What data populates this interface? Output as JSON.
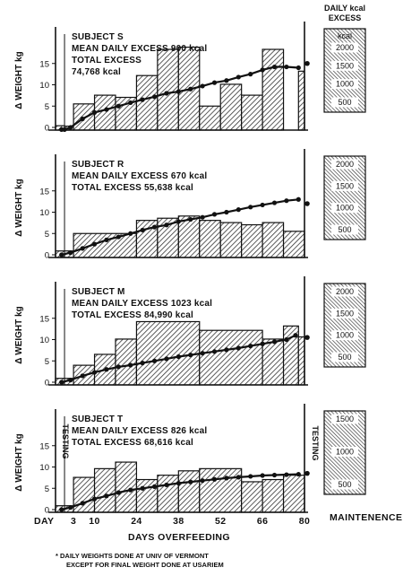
{
  "chart_data": [
    {
      "type": "bar",
      "title": "SUBJECT S",
      "subtitle_lines": [
        "MEAN DAILY EXCESS 900 kcal",
        "TOTAL EXCESS",
        "74,768 kcal"
      ],
      "ylabel": "Δ WEIGHT kg",
      "ylim": [
        -1,
        20
      ],
      "yticks": [
        0,
        5,
        10,
        15
      ],
      "intake_scale": {
        "title_lines": [
          "DAILY kcal",
          "EXCESS"
        ],
        "unit": "kcal",
        "ticks": [
          "2000",
          "1500",
          "1000",
          "500"
        ]
      },
      "excess_bars": [
        {
          "x0": -3,
          "x1": 0,
          "kcal": 100
        },
        {
          "x0": 0,
          "x1": 3,
          "kcal": 90
        },
        {
          "x0": 3,
          "x1": 10,
          "kcal": 600
        },
        {
          "x0": 10,
          "x1": 17,
          "kcal": 800
        },
        {
          "x0": 17,
          "x1": 24,
          "kcal": 750
        },
        {
          "x0": 24,
          "x1": 31,
          "kcal": 1250
        },
        {
          "x0": 31,
          "x1": 38,
          "kcal": 1850
        },
        {
          "x0": 38,
          "x1": 45,
          "kcal": 1900
        },
        {
          "x0": 45,
          "x1": 52,
          "kcal": 550
        },
        {
          "x0": 52,
          "x1": 59,
          "kcal": 1050
        },
        {
          "x0": 59,
          "x1": 66,
          "kcal": 800
        },
        {
          "x0": 66,
          "x1": 73,
          "kcal": 1850
        },
        {
          "x0": 78,
          "x1": 80,
          "kcal": 1350
        }
      ],
      "weight_change": {
        "x": [
          -1,
          0,
          2,
          6,
          10,
          14,
          18,
          22,
          26,
          30,
          34,
          38,
          42,
          46,
          50,
          54,
          58,
          62,
          66,
          70,
          74,
          78
        ],
        "y": [
          -0.5,
          -0.5,
          0,
          2,
          3.5,
          4.2,
          5,
          5.8,
          6.5,
          7.2,
          8,
          8.4,
          9,
          9.7,
          10.5,
          11,
          11.8,
          12.5,
          13.5,
          14.2,
          14.2,
          14
        ],
        "final_x": 80,
        "final_y": 15
      }
    },
    {
      "type": "bar",
      "title": "SUBJECT R",
      "subtitle_lines": [
        "MEAN DAILY EXCESS 670 kcal",
        "TOTAL EXCESS 55,638 kcal"
      ],
      "ylabel": "Δ WEIGHT kg",
      "ylim": [
        -1,
        20
      ],
      "yticks": [
        0,
        5,
        10,
        15
      ],
      "intake_scale": {
        "title_lines": [],
        "unit": "",
        "ticks": [
          "2000",
          "1500",
          "1000",
          "500"
        ]
      },
      "excess_bars": [
        {
          "x0": -3,
          "x1": 3,
          "kcal": 150
        },
        {
          "x0": 3,
          "x1": 24,
          "kcal": 550
        },
        {
          "x0": 24,
          "x1": 31,
          "kcal": 850
        },
        {
          "x0": 31,
          "x1": 38,
          "kcal": 900
        },
        {
          "x0": 38,
          "x1": 45,
          "kcal": 950
        },
        {
          "x0": 45,
          "x1": 52,
          "kcal": 850
        },
        {
          "x0": 52,
          "x1": 59,
          "kcal": 800
        },
        {
          "x0": 59,
          "x1": 66,
          "kcal": 750
        },
        {
          "x0": 66,
          "x1": 73,
          "kcal": 800
        },
        {
          "x0": 73,
          "x1": 80,
          "kcal": 600
        }
      ],
      "weight_change": {
        "x": [
          -1,
          2,
          6,
          10,
          14,
          18,
          22,
          26,
          30,
          34,
          38,
          42,
          46,
          50,
          54,
          58,
          62,
          66,
          70,
          74,
          78
        ],
        "y": [
          0,
          0.5,
          1.5,
          2.5,
          3.5,
          4.2,
          5,
          5.8,
          6.5,
          7,
          7.8,
          8.3,
          8.8,
          9.5,
          10,
          10.6,
          11.2,
          11.7,
          12.2,
          12.7,
          13
        ],
        "final_x": 80,
        "final_y": 12
      }
    },
    {
      "type": "bar",
      "title": "SUBJECT M",
      "subtitle_lines": [
        "MEAN DAILY EXCESS 1023 kcal",
        "TOTAL EXCESS 84,990 kcal"
      ],
      "ylabel": "Δ WEIGHT kg",
      "ylim": [
        -1,
        20
      ],
      "yticks": [
        0,
        5,
        10,
        15
      ],
      "intake_scale": {
        "title_lines": [],
        "unit": "",
        "ticks": [
          "2000",
          "1500",
          "1000",
          "500"
        ]
      },
      "excess_bars": [
        {
          "x0": -3,
          "x1": 3,
          "kcal": 150
        },
        {
          "x0": 3,
          "x1": 10,
          "kcal": 450
        },
        {
          "x0": 10,
          "x1": 17,
          "kcal": 700
        },
        {
          "x0": 17,
          "x1": 24,
          "kcal": 1050
        },
        {
          "x0": 24,
          "x1": 45,
          "kcal": 1450
        },
        {
          "x0": 45,
          "x1": 66,
          "kcal": 1250
        },
        {
          "x0": 66,
          "x1": 73,
          "kcal": 1050
        },
        {
          "x0": 73,
          "x1": 78,
          "kcal": 1350
        },
        {
          "x0": 78,
          "x1": 80,
          "kcal": 1100
        }
      ],
      "weight_change": {
        "x": [
          -1,
          2,
          6,
          10,
          14,
          18,
          22,
          26,
          30,
          34,
          38,
          42,
          46,
          50,
          54,
          58,
          62,
          66,
          70,
          74,
          77
        ],
        "y": [
          0,
          0.5,
          1.5,
          2.3,
          3,
          3.6,
          4,
          4.5,
          5,
          5.5,
          6,
          6.4,
          6.8,
          7.2,
          7.6,
          8,
          8.5,
          9,
          9.5,
          10,
          11
        ],
        "final_x": 80,
        "final_y": 10.5
      }
    },
    {
      "type": "bar",
      "title": "SUBJECT T",
      "subtitle_lines": [
        "MEAN DAILY EXCESS 826 kcal",
        "TOTAL EXCESS 68,616 kcal"
      ],
      "ylabel": "Δ WEIGHT kg",
      "ylim": [
        -1,
        20
      ],
      "yticks": [
        0,
        5,
        10,
        15
      ],
      "left_vertical_label": "TESTING",
      "right_vertical_label": "TESTING",
      "intake_scale": {
        "title_lines": [],
        "unit": "",
        "ticks": [
          "1500",
          "1000",
          "500"
        ]
      },
      "excess_bars": [
        {
          "x0": -3,
          "x1": 3,
          "kcal": 150
        },
        {
          "x0": 3,
          "x1": 10,
          "kcal": 800
        },
        {
          "x0": 10,
          "x1": 17,
          "kcal": 1000
        },
        {
          "x0": 17,
          "x1": 24,
          "kcal": 1150
        },
        {
          "x0": 24,
          "x1": 31,
          "kcal": 750
        },
        {
          "x0": 31,
          "x1": 38,
          "kcal": 850
        },
        {
          "x0": 38,
          "x1": 45,
          "kcal": 950
        },
        {
          "x0": 45,
          "x1": 59,
          "kcal": 1000
        },
        {
          "x0": 59,
          "x1": 66,
          "kcal": 700
        },
        {
          "x0": 66,
          "x1": 73,
          "kcal": 750
        },
        {
          "x0": 73,
          "x1": 80,
          "kcal": 850
        }
      ],
      "weight_change": {
        "x": [
          -1,
          2,
          6,
          10,
          14,
          18,
          22,
          26,
          30,
          34,
          38,
          42,
          46,
          50,
          54,
          58,
          62,
          66,
          70,
          74,
          78
        ],
        "y": [
          0,
          0.5,
          1.5,
          2.5,
          3.2,
          4,
          4.6,
          5,
          5.4,
          5.8,
          6.2,
          6.5,
          6.8,
          7.1,
          7.4,
          7.6,
          7.8,
          8,
          8.1,
          8.2,
          8.3
        ],
        "final_x": 80,
        "final_y": 8.5
      }
    }
  ],
  "x_axis": {
    "start_label": "DAY",
    "ticks": [
      3,
      10,
      24,
      38,
      52,
      66,
      80
    ],
    "tick_labels": [
      "3",
      "10",
      "24",
      "38",
      "52",
      "66",
      "80"
    ],
    "xlim": [
      -3,
      80
    ],
    "xlabel": "DAYS OVERFEEDING",
    "right_label": "MAINTENENCE"
  },
  "footnote_lines": [
    "* DAILY WEIGHTS DONE AT UNIV OF VERMONT",
    "EXCEPT FOR FINAL WEIGHT DONE AT USARIEM"
  ]
}
